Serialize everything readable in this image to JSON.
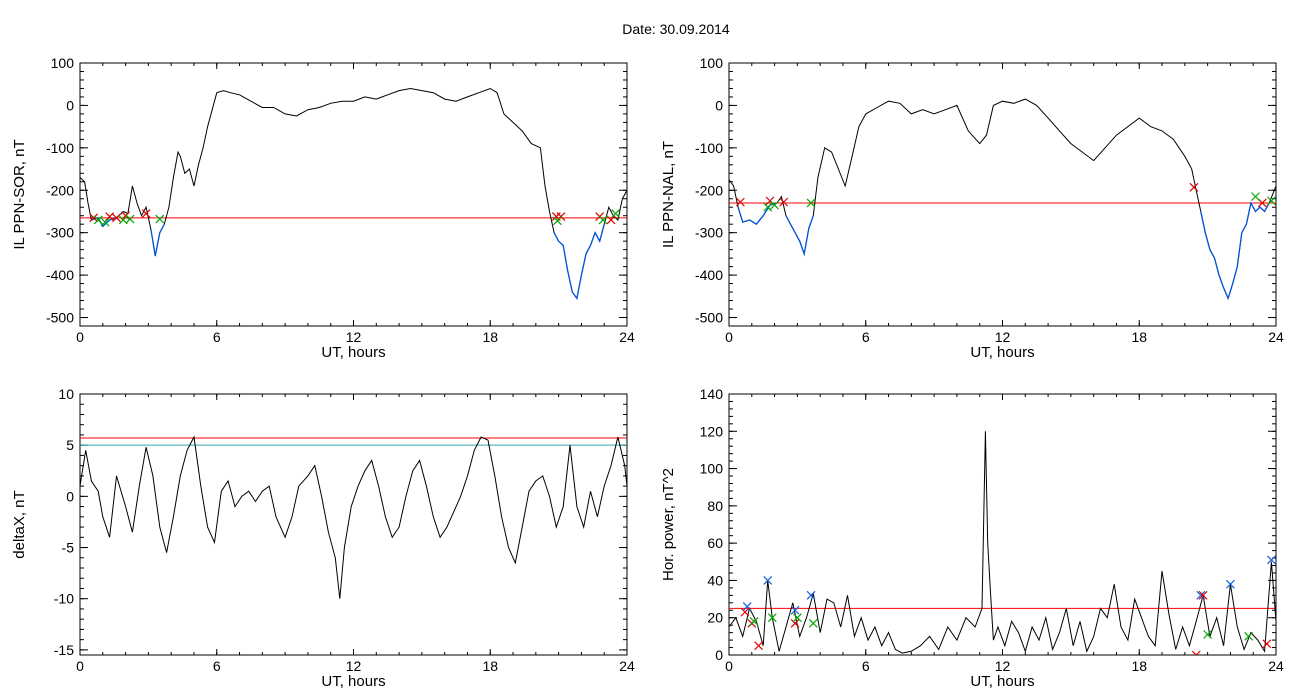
{
  "figure": {
    "title": "Date:  30.09.2014"
  },
  "chart_data": [
    {
      "type": "line",
      "ylabel": "IL PPN-SOR, nT",
      "xlabel": "UT, hours",
      "xlim": [
        0,
        24
      ],
      "ylim": [
        -520,
        100
      ],
      "xticks": [
        0,
        6,
        12,
        18,
        24
      ],
      "yticks": [
        -500,
        -400,
        -300,
        -200,
        -100,
        0,
        100
      ],
      "grid": false,
      "threshold": {
        "value": -265,
        "color": "#ff0000"
      },
      "colors": {
        "curve": "#000000",
        "below_threshold": "#0055dd"
      },
      "series": [
        {
          "x": [
            0,
            0.2,
            0.35,
            0.5,
            0.8,
            1.0,
            1.3,
            1.6,
            1.9,
            2.1,
            2.3,
            2.5,
            2.7,
            2.9,
            3.1,
            3.2,
            3.3,
            3.5,
            3.7,
            3.9,
            4.1,
            4.3,
            4.4,
            4.6,
            4.8,
            5.0,
            5.2,
            5.4,
            5.6,
            6.0,
            6.3,
            6.6,
            7.0,
            7.5,
            8.0,
            8.5,
            9.0,
            9.5,
            10.0,
            10.5,
            11.0,
            11.5,
            12.0,
            12.5,
            13.0,
            13.5,
            14.0,
            14.5,
            15.0,
            15.5,
            16.0,
            16.5,
            17.0,
            17.5,
            18.0,
            18.3,
            18.6,
            19.0,
            19.4,
            19.8,
            20.2,
            20.4,
            20.6,
            20.8,
            21.0,
            21.2,
            21.4,
            21.6,
            21.8,
            22.0,
            22.2,
            22.4,
            22.6,
            22.8,
            23.0,
            23.2,
            23.4,
            23.6,
            23.8,
            24.0
          ],
          "y": [
            -170,
            -180,
            -230,
            -270,
            -265,
            -285,
            -270,
            -265,
            -250,
            -255,
            -190,
            -230,
            -260,
            -240,
            -290,
            -320,
            -355,
            -300,
            -280,
            -240,
            -170,
            -110,
            -120,
            -160,
            -150,
            -190,
            -140,
            -100,
            -50,
            30,
            35,
            30,
            25,
            10,
            -5,
            -5,
            -20,
            -25,
            -10,
            -5,
            5,
            10,
            10,
            20,
            15,
            25,
            35,
            40,
            35,
            30,
            15,
            10,
            20,
            30,
            40,
            30,
            -20,
            -40,
            -60,
            -90,
            -100,
            -190,
            -250,
            -300,
            -320,
            -330,
            -390,
            -440,
            -455,
            -400,
            -350,
            -330,
            -300,
            -320,
            -280,
            -240,
            -260,
            -270,
            -220,
            -200
          ]
        }
      ],
      "markers": {
        "red": [
          [
            0.6,
            -265
          ],
          [
            1.3,
            -262
          ],
          [
            1.6,
            -265
          ],
          [
            2.0,
            -260
          ],
          [
            2.9,
            -255
          ],
          [
            20.9,
            -262
          ],
          [
            21.1,
            -262
          ],
          [
            22.8,
            -262
          ],
          [
            23.3,
            -270
          ]
        ],
        "green": [
          [
            0.8,
            -270
          ],
          [
            1.1,
            -275
          ],
          [
            1.9,
            -270
          ],
          [
            2.2,
            -268
          ],
          [
            3.5,
            -268
          ],
          [
            20.95,
            -272
          ],
          [
            22.95,
            -270
          ],
          [
            23.5,
            -255
          ]
        ]
      }
    },
    {
      "type": "line",
      "ylabel": "IL PPN-NAL, nT",
      "xlabel": "UT, hours",
      "xlim": [
        0,
        24
      ],
      "ylim": [
        -520,
        100
      ],
      "xticks": [
        0,
        6,
        12,
        18,
        24
      ],
      "yticks": [
        -500,
        -400,
        -300,
        -200,
        -100,
        0,
        100
      ],
      "grid": false,
      "threshold": {
        "value": -230,
        "color": "#ff0000"
      },
      "colors": {
        "curve": "#000000",
        "below_threshold": "#0055dd"
      },
      "series": [
        {
          "x": [
            0,
            0.2,
            0.4,
            0.6,
            0.9,
            1.2,
            1.5,
            1.8,
            2.1,
            2.3,
            2.5,
            2.7,
            2.9,
            3.1,
            3.3,
            3.5,
            3.7,
            3.9,
            4.2,
            4.5,
            4.8,
            5.1,
            5.4,
            5.7,
            6.0,
            6.5,
            7.0,
            7.5,
            8.0,
            8.5,
            9.0,
            9.5,
            10.0,
            10.5,
            11.0,
            11.3,
            11.6,
            12.0,
            12.5,
            13.0,
            13.5,
            14.0,
            14.5,
            15.0,
            15.5,
            16.0,
            16.5,
            17.0,
            17.5,
            18.0,
            18.5,
            19.0,
            19.5,
            20.0,
            20.3,
            20.5,
            20.7,
            20.9,
            21.1,
            21.3,
            21.5,
            21.7,
            21.9,
            22.1,
            22.3,
            22.5,
            22.7,
            22.9,
            23.1,
            23.3,
            23.5,
            23.7,
            24.0
          ],
          "y": [
            -175,
            -190,
            -240,
            -275,
            -270,
            -280,
            -260,
            -235,
            -230,
            -215,
            -260,
            -280,
            -300,
            -320,
            -350,
            -290,
            -260,
            -170,
            -100,
            -110,
            -150,
            -190,
            -120,
            -50,
            -20,
            -5,
            10,
            5,
            -20,
            -10,
            -20,
            -10,
            0,
            -60,
            -90,
            -70,
            0,
            10,
            5,
            15,
            0,
            -30,
            -60,
            -90,
            -110,
            -130,
            -100,
            -70,
            -50,
            -30,
            -50,
            -60,
            -80,
            -120,
            -150,
            -200,
            -250,
            -300,
            -340,
            -360,
            -400,
            -430,
            -455,
            -420,
            -380,
            -300,
            -280,
            -230,
            -250,
            -240,
            -250,
            -230,
            -190
          ]
        }
      ],
      "markers": {
        "red": [
          [
            0.5,
            -228
          ],
          [
            1.8,
            -225
          ],
          [
            2.4,
            -228
          ],
          [
            20.4,
            -193
          ],
          [
            23.4,
            -230
          ]
        ],
        "green": [
          [
            1.7,
            -240
          ],
          [
            2.0,
            -235
          ],
          [
            3.6,
            -230
          ],
          [
            23.1,
            -215
          ],
          [
            23.8,
            -225
          ]
        ]
      }
    },
    {
      "type": "line",
      "ylabel": "deltaX, nT",
      "xlabel": "UT, hours",
      "xlim": [
        0,
        24
      ],
      "ylim": [
        -15.5,
        10
      ],
      "xticks": [
        0,
        6,
        12,
        18,
        24
      ],
      "yticks": [
        -15,
        -10,
        -5,
        0,
        5,
        10
      ],
      "grid": false,
      "thresholds": [
        {
          "value": 5.7,
          "color": "#ff0000"
        },
        {
          "value": 5.0,
          "color": "#33aaaa"
        }
      ],
      "series": [
        {
          "x": [
            0,
            0.25,
            0.5,
            0.8,
            1.0,
            1.3,
            1.6,
            2.0,
            2.3,
            2.6,
            2.9,
            3.2,
            3.5,
            3.8,
            4.1,
            4.4,
            4.7,
            5.0,
            5.3,
            5.6,
            5.9,
            6.2,
            6.5,
            6.8,
            7.1,
            7.4,
            7.7,
            8.0,
            8.3,
            8.6,
            9.0,
            9.3,
            9.6,
            10.0,
            10.3,
            10.6,
            10.9,
            11.2,
            11.4,
            11.6,
            11.9,
            12.2,
            12.5,
            12.8,
            13.1,
            13.4,
            13.7,
            14.0,
            14.3,
            14.6,
            14.9,
            15.2,
            15.5,
            15.8,
            16.1,
            16.4,
            16.7,
            17.0,
            17.3,
            17.6,
            17.9,
            18.2,
            18.5,
            18.8,
            19.1,
            19.4,
            19.7,
            20.0,
            20.3,
            20.6,
            20.9,
            21.2,
            21.5,
            21.8,
            22.1,
            22.4,
            22.7,
            23.0,
            23.3,
            23.6,
            23.9,
            24.0
          ],
          "y": [
            1.0,
            4.5,
            1.5,
            0.5,
            -2.0,
            -4.0,
            2.0,
            -1.0,
            -3.5,
            1.0,
            4.8,
            2.0,
            -3.0,
            -5.5,
            -2.0,
            2.0,
            4.5,
            5.8,
            1.0,
            -3.0,
            -4.5,
            0.5,
            1.5,
            -1.0,
            0.0,
            0.5,
            -0.5,
            0.5,
            1.0,
            -2.0,
            -4.0,
            -2.0,
            1.0,
            2.0,
            3.0,
            0.0,
            -3.5,
            -6.0,
            -10.0,
            -5.0,
            -1.0,
            1.0,
            2.5,
            3.5,
            1.0,
            -2.0,
            -4.0,
            -3.0,
            0.0,
            2.5,
            3.5,
            1.0,
            -2.0,
            -4.0,
            -3.0,
            -1.5,
            0.0,
            2.0,
            4.5,
            5.8,
            5.5,
            2.0,
            -2.0,
            -5.0,
            -6.5,
            -3.0,
            0.5,
            1.5,
            2.0,
            0.0,
            -3.0,
            -1.0,
            5.0,
            -1.0,
            -3.0,
            0.5,
            -2.0,
            1.0,
            3.0,
            5.8,
            3.0,
            1.0
          ]
        }
      ]
    },
    {
      "type": "line",
      "ylabel": "Hor. power, nT^2",
      "xlabel": "UT, hours",
      "xlim": [
        0,
        24
      ],
      "ylim": [
        0,
        140
      ],
      "xticks": [
        0,
        6,
        12,
        18,
        24
      ],
      "yticks": [
        0,
        20,
        40,
        60,
        80,
        100,
        120,
        140
      ],
      "grid": false,
      "threshold": {
        "value": 25,
        "color": "#ff0000"
      },
      "series": [
        {
          "x": [
            0,
            0.3,
            0.6,
            0.9,
            1.2,
            1.5,
            1.7,
            1.9,
            2.2,
            2.5,
            2.8,
            3.1,
            3.4,
            3.7,
            4.0,
            4.3,
            4.6,
            4.9,
            5.2,
            5.5,
            5.8,
            6.1,
            6.4,
            6.7,
            7.0,
            7.3,
            7.6,
            8.0,
            8.4,
            8.8,
            9.2,
            9.6,
            10.0,
            10.4,
            10.8,
            11.1,
            11.25,
            11.35,
            11.5,
            11.6,
            11.8,
            12.1,
            12.4,
            12.7,
            13.0,
            13.3,
            13.6,
            13.9,
            14.2,
            14.5,
            14.8,
            15.1,
            15.4,
            15.7,
            16.0,
            16.3,
            16.6,
            16.9,
            17.2,
            17.5,
            17.8,
            18.1,
            18.4,
            18.7,
            19.0,
            19.3,
            19.6,
            19.9,
            20.2,
            20.5,
            20.8,
            21.1,
            21.4,
            21.7,
            22.0,
            22.3,
            22.6,
            22.9,
            23.2,
            23.5,
            23.8,
            24.0
          ],
          "y": [
            15,
            20,
            10,
            25,
            18,
            5,
            40,
            20,
            2,
            15,
            28,
            10,
            20,
            33,
            12,
            30,
            28,
            15,
            32,
            10,
            20,
            8,
            15,
            5,
            12,
            3,
            1,
            2,
            5,
            10,
            3,
            15,
            8,
            20,
            15,
            25,
            120,
            60,
            28,
            8,
            15,
            5,
            18,
            12,
            2,
            15,
            8,
            20,
            3,
            12,
            25,
            5,
            18,
            2,
            10,
            25,
            20,
            38,
            15,
            8,
            30,
            20,
            10,
            5,
            45,
            22,
            3,
            15,
            5,
            18,
            32,
            10,
            20,
            5,
            38,
            15,
            3,
            12,
            8,
            2,
            50,
            18
          ]
        }
      ],
      "markers": {
        "blue": [
          [
            0.8,
            26
          ],
          [
            1.7,
            40
          ],
          [
            2.9,
            24
          ],
          [
            3.6,
            32
          ],
          [
            20.7,
            32
          ],
          [
            22.0,
            38
          ],
          [
            23.8,
            51
          ]
        ],
        "red": [
          [
            0.7,
            23
          ],
          [
            1.0,
            17
          ],
          [
            1.3,
            5
          ],
          [
            2.9,
            17
          ],
          [
            20.5,
            0
          ],
          [
            20.8,
            32
          ],
          [
            23.6,
            6
          ]
        ],
        "green": [
          [
            1.1,
            18
          ],
          [
            1.9,
            20
          ],
          [
            3.0,
            20
          ],
          [
            3.7,
            17
          ],
          [
            21.0,
            11
          ],
          [
            22.8,
            10
          ]
        ]
      }
    }
  ]
}
